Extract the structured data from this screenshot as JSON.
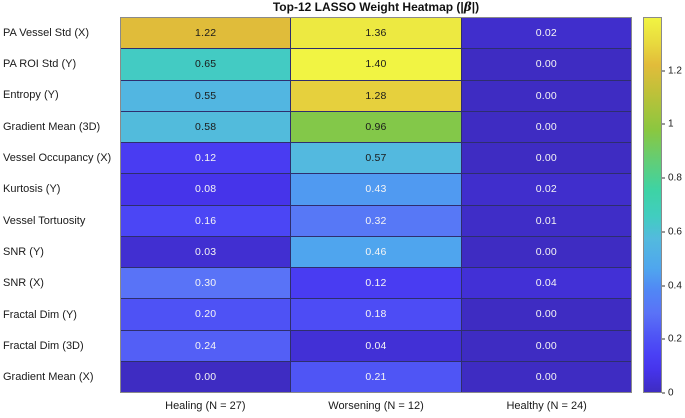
{
  "title": {
    "pre": "Top-12 LASSO Weight Heatmap (|",
    "beta": "β",
    "post": "|)"
  },
  "chart_data": {
    "type": "heatmap",
    "rows": [
      "PA Vessel Std (X)",
      "PA ROI Std (Y)",
      "Entropy (Y)",
      "Gradient Mean (3D)",
      "Vessel Occupancy (X)",
      "Kurtosis (Y)",
      "Vessel Tortuosity",
      "SNR (Y)",
      "SNR (X)",
      "Fractal Dim (Y)",
      "Fractal Dim (3D)",
      "Gradient Mean (X)"
    ],
    "columns": [
      "Healing (N = 27)",
      "Worsening (N = 12)",
      "Healthy (N = 24)"
    ],
    "values": [
      [
        1.22,
        1.36,
        0.02
      ],
      [
        0.65,
        1.4,
        0.0
      ],
      [
        0.55,
        1.28,
        0.0
      ],
      [
        0.58,
        0.96,
        0.0
      ],
      [
        0.12,
        0.57,
        0.0
      ],
      [
        0.08,
        0.43,
        0.02
      ],
      [
        0.16,
        0.32,
        0.01
      ],
      [
        0.03,
        0.46,
        0.0
      ],
      [
        0.3,
        0.12,
        0.04
      ],
      [
        0.2,
        0.18,
        0.0
      ],
      [
        0.24,
        0.04,
        0.0
      ],
      [
        0.0,
        0.21,
        0.0
      ]
    ],
    "value_decimals": 2,
    "colorbar": {
      "position": "right",
      "vmin": 0,
      "vmax": 1.4,
      "ticks": [
        {
          "value": 0,
          "label": "0"
        },
        {
          "value": 0.2,
          "label": "0.2"
        },
        {
          "value": 0.4,
          "label": "0.4"
        },
        {
          "value": 0.6,
          "label": "0.6"
        },
        {
          "value": 0.8,
          "label": "0.8"
        },
        {
          "value": 1,
          "label": "1"
        },
        {
          "value": 1.2,
          "label": "1.2"
        }
      ]
    },
    "colormap": {
      "name": "parula",
      "stops": [
        [
          0.0,
          "#3e2cc2"
        ],
        [
          0.06,
          "#4634ec"
        ],
        [
          0.1,
          "#4a40f5"
        ],
        [
          0.15,
          "#4f55f5"
        ],
        [
          0.21,
          "#5a72f7"
        ],
        [
          0.27,
          "#5186f5"
        ],
        [
          0.33,
          "#4fa6ee"
        ],
        [
          0.41,
          "#53bade"
        ],
        [
          0.47,
          "#41cdc0"
        ],
        [
          0.54,
          "#3ed3a4"
        ],
        [
          0.62,
          "#63cd75"
        ],
        [
          0.7,
          "#8ac740"
        ],
        [
          0.8,
          "#bec139"
        ],
        [
          0.875,
          "#e2bc3a"
        ],
        [
          0.93,
          "#e8d83e"
        ],
        [
          1.0,
          "#f1f443"
        ]
      ]
    },
    "grid": true
  },
  "colors": {
    "background": "#ffffff",
    "axis_border": "#8a8a8a",
    "grid_line": "#2e2e6e",
    "label_text": "#1a1a1a",
    "cell_text_dark": "#1a1a1a",
    "cell_text_light": "#f5f5f5"
  }
}
